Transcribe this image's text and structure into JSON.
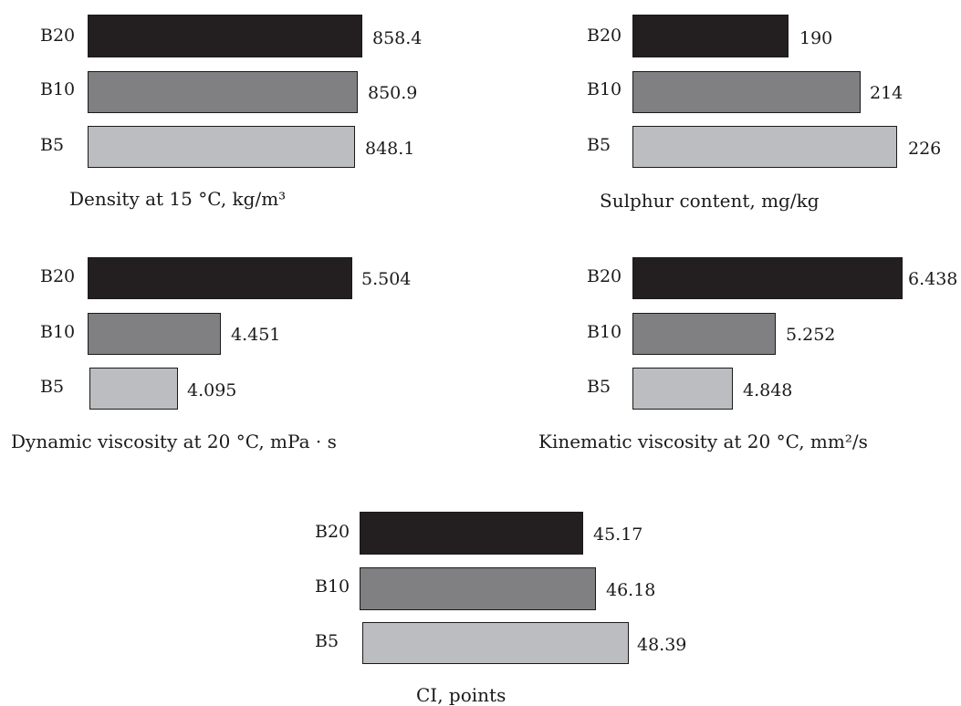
{
  "chart_data": [
    {
      "type": "bar",
      "orientation": "horizontal",
      "title": "Density at 15 °C, kg/m³",
      "categories": [
        "B20",
        "B10",
        "B5"
      ],
      "values": [
        858.4,
        850.9,
        848.1
      ],
      "value_labels": [
        "858.4",
        "850.9",
        "848.1"
      ],
      "colors": [
        "#231f20",
        "#808082",
        "#bcbdc0"
      ]
    },
    {
      "type": "bar",
      "orientation": "horizontal",
      "title": "Sulphur content, mg/kg",
      "categories": [
        "B20",
        "B10",
        "B5"
      ],
      "values": [
        190,
        214,
        226
      ],
      "value_labels": [
        "190",
        "214",
        "226"
      ],
      "colors": [
        "#231f20",
        "#808082",
        "#bcbdc0"
      ]
    },
    {
      "type": "bar",
      "orientation": "horizontal",
      "title": "Dynamic viscosity at 20 °C, mPa · s",
      "categories": [
        "B20",
        "B10",
        "B5"
      ],
      "values": [
        5.504,
        4.451,
        4.095
      ],
      "value_labels": [
        "5.504",
        "4.451",
        "4.095"
      ],
      "colors": [
        "#231f20",
        "#808082",
        "#bcbdc0"
      ]
    },
    {
      "type": "bar",
      "orientation": "horizontal",
      "title": "Kinematic viscosity at 20 °C, mm²/s",
      "categories": [
        "B20",
        "B10",
        "B5"
      ],
      "values": [
        6.438,
        5.252,
        4.848
      ],
      "value_labels": [
        "6.438",
        "5.252",
        "4.848"
      ],
      "colors": [
        "#231f20",
        "#808082",
        "#bcbdc0"
      ]
    },
    {
      "type": "bar",
      "orientation": "horizontal",
      "title": "CI, points",
      "categories": [
        "B20",
        "B10",
        "B5"
      ],
      "values": [
        45.17,
        46.18,
        48.39
      ],
      "value_labels": [
        "45.17",
        "46.18",
        "48.39"
      ],
      "colors": [
        "#231f20",
        "#808082",
        "#bcbdc0"
      ]
    }
  ]
}
